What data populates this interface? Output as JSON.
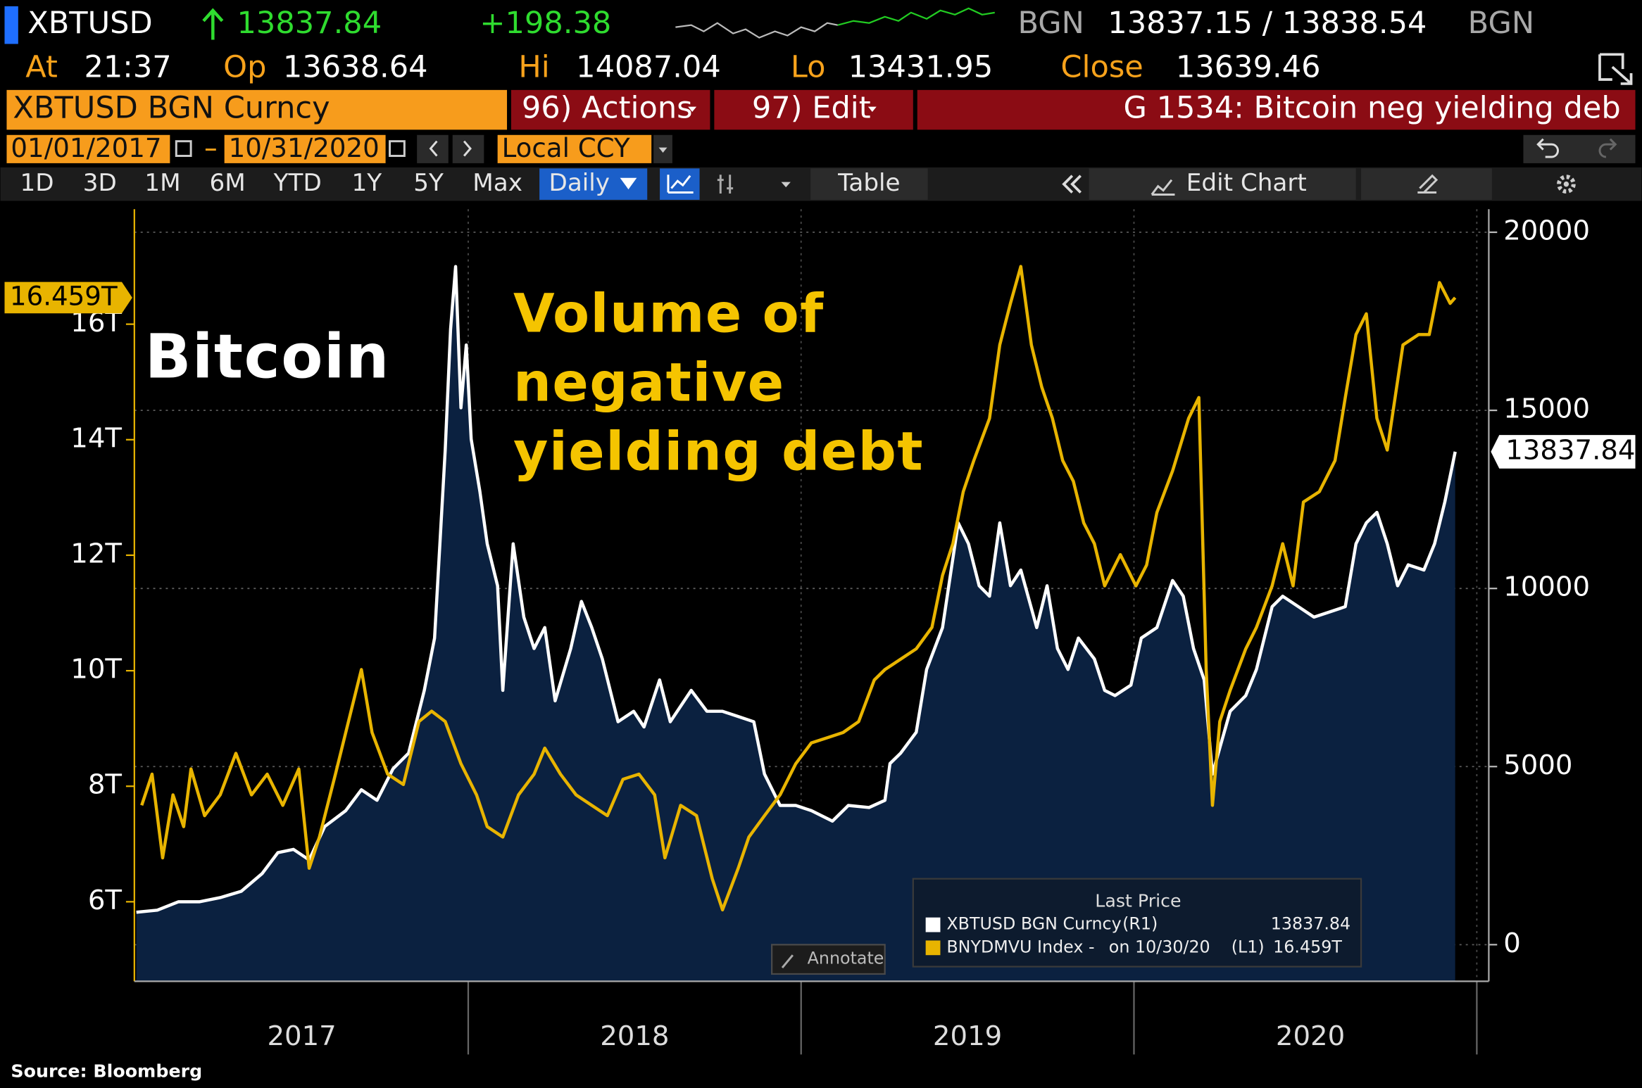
{
  "header": {
    "ticker": "XBTUSD",
    "last": "13837.84",
    "change": "+198.38",
    "source_code": "BGN",
    "bid_ask": "13837.15 / 13838.54",
    "time_label": "At",
    "time": "21:37",
    "open_label": "Op",
    "open": "13638.64",
    "high_label": "Hi",
    "high": "14087.04",
    "low_label": "Lo",
    "low": "13431.95",
    "close_label": "Close",
    "close": "13639.46",
    "security": "XBTUSD BGN Curncy",
    "actions": "96) Actions",
    "edit": "97) Edit",
    "chart_name": "G 1534: Bitcoin neg yielding deb",
    "start_date": "01/01/2017",
    "end_date": "10/31/2020",
    "currency": "Local CCY",
    "periods": [
      "1D",
      "3D",
      "1M",
      "6M",
      "YTD",
      "1Y",
      "5Y",
      "Max"
    ],
    "frequency": "Daily",
    "table": "Table",
    "edit_chart": "Edit Chart"
  },
  "chart_data": {
    "type": "line",
    "annotations": [
      {
        "lines": [
          "Bitcoin"
        ],
        "color": "#ffffff"
      },
      {
        "lines": [
          "Volume of",
          "negative",
          "yielding debt"
        ],
        "color": "#f5c400"
      }
    ],
    "xlim": [
      2016.997,
      2021.066
    ],
    "xticks": [
      {
        "value": 2017.5,
        "label": "2017"
      },
      {
        "value": 2018.5,
        "label": "2018"
      },
      {
        "value": 2019.5,
        "label": "2019"
      },
      {
        "value": 2020.53,
        "label": "2020"
      }
    ],
    "ylim": [
      4.623,
      17.99
    ],
    "yticks": [
      {
        "value": 6,
        "label": "6T"
      },
      {
        "value": 8,
        "label": "8T"
      },
      {
        "value": 10,
        "label": "10T"
      },
      {
        "value": 12,
        "label": "12T"
      },
      {
        "value": 14,
        "label": "14T"
      },
      {
        "value": 16,
        "label": "16T"
      }
    ],
    "y2lim": [
      -1028,
      20646
    ],
    "y2ticks": [
      0,
      5000,
      10000,
      15000,
      20000
    ],
    "grid": true,
    "area_color": "#0b2140",
    "legend": {
      "title": "Last Price"
    },
    "annotate_button": "Annotate",
    "source": "Source: Bloomberg",
    "series": [
      {
        "name": "XBTUSD BGN Curncy",
        "axis_tag": "(R1)",
        "color": "#ffffff",
        "axis": "y2",
        "area": true,
        "last_value": 13837.84,
        "x": [
          2017.003,
          2017.066,
          2017.129,
          2017.192,
          2017.255,
          2017.318,
          2017.381,
          2017.428,
          2017.475,
          2017.522,
          2017.569,
          2017.632,
          2017.679,
          2017.726,
          2017.774,
          2017.821,
          2017.868,
          2017.899,
          2017.931,
          2017.947,
          2017.962,
          2017.978,
          2017.994,
          2018.009,
          2018.035,
          2018.057,
          2018.088,
          2018.104,
          2018.135,
          2018.167,
          2018.198,
          2018.23,
          2018.261,
          2018.308,
          2018.34,
          2018.371,
          2018.403,
          2018.45,
          2018.497,
          2018.528,
          2018.575,
          2018.607,
          2018.67,
          2018.717,
          2018.764,
          2018.811,
          2018.858,
          2018.89,
          2018.937,
          2018.984,
          2019.031,
          2019.094,
          2019.142,
          2019.204,
          2019.252,
          2019.267,
          2019.299,
          2019.346,
          2019.377,
          2019.425,
          2019.472,
          2019.503,
          2019.535,
          2019.566,
          2019.597,
          2019.629,
          2019.66,
          2019.708,
          2019.739,
          2019.77,
          2019.802,
          2019.833,
          2019.881,
          2019.912,
          2019.943,
          2019.991,
          2020.022,
          2020.069,
          2020.116,
          2020.148,
          2020.179,
          2020.211,
          2020.236,
          2020.258,
          2020.289,
          2020.336,
          2020.368,
          2020.415,
          2020.447,
          2020.494,
          2020.541,
          2020.588,
          2020.635,
          2020.667,
          2020.698,
          2020.73,
          2020.761,
          2020.792,
          2020.824,
          2020.871,
          2020.903,
          2020.934,
          2020.965
        ],
        "values": [
          911,
          970,
          1205,
          1205,
          1322,
          1498,
          1998,
          2585,
          2674,
          2380,
          3320,
          3761,
          4348,
          4054,
          4936,
          5377,
          7139,
          8608,
          13897,
          17275,
          19038,
          15072,
          16835,
          14191,
          12722,
          11253,
          10077,
          7139,
          11253,
          9196,
          8314,
          8902,
          6845,
          8314,
          9637,
          8902,
          8020,
          6258,
          6552,
          6111,
          7433,
          6258,
          7139,
          6552,
          6552,
          6405,
          6258,
          4789,
          3908,
          3908,
          3761,
          3467,
          3908,
          3849,
          4054,
          5083,
          5377,
          5964,
          7727,
          8902,
          11840,
          11253,
          10077,
          9784,
          11840,
          10077,
          10518,
          8902,
          10077,
          8314,
          7727,
          8608,
          8020,
          7139,
          6992,
          7286,
          8608,
          8902,
          10224,
          9784,
          8314,
          7433,
          4789,
          5523,
          6552,
          6992,
          7727,
          9490,
          9784,
          9490,
          9196,
          9343,
          9490,
          11253,
          11840,
          12134,
          11253,
          10077,
          10665,
          10518,
          11253,
          12428,
          13837.84
        ]
      },
      {
        "name": "BNYDMVU Index -",
        "date": "on 10/30/20",
        "axis_tag": "(L1)",
        "color": "#e8b400",
        "area": false,
        "last_value": {
          "value": 16.459,
          "label": "16.459T"
        },
        "x": [
          2017.019,
          2017.05,
          2017.082,
          2017.113,
          2017.145,
          2017.167,
          2017.208,
          2017.255,
          2017.302,
          2017.349,
          2017.396,
          2017.443,
          2017.491,
          2017.522,
          2017.553,
          2017.601,
          2017.648,
          2017.679,
          2017.711,
          2017.758,
          2017.805,
          2017.852,
          2017.89,
          2017.931,
          2017.978,
          2018.025,
          2018.057,
          2018.104,
          2018.151,
          2018.198,
          2018.23,
          2018.277,
          2018.324,
          2018.371,
          2018.418,
          2018.465,
          2018.513,
          2018.56,
          2018.591,
          2018.638,
          2018.686,
          2018.733,
          2018.764,
          2018.811,
          2018.843,
          2018.89,
          2018.937,
          2018.984,
          2019.031,
          2019.079,
          2019.126,
          2019.173,
          2019.22,
          2019.252,
          2019.299,
          2019.346,
          2019.393,
          2019.425,
          2019.456,
          2019.487,
          2019.519,
          2019.566,
          2019.597,
          2019.629,
          2019.66,
          2019.692,
          2019.723,
          2019.755,
          2019.786,
          2019.818,
          2019.849,
          2019.881,
          2019.912,
          2019.959,
          2020.006,
          2020.038,
          2020.069,
          2020.116,
          2020.164,
          2020.195,
          2020.217,
          2020.236,
          2020.258,
          2020.289,
          2020.336,
          2020.368,
          2020.415,
          2020.447,
          2020.478,
          2020.509,
          2020.557,
          2020.604,
          2020.635,
          2020.667,
          2020.698,
          2020.73,
          2020.761,
          2020.808,
          2020.855,
          2020.887,
          2020.918,
          2020.95,
          2020.965
        ],
        "values": [
          7.67,
          8.21,
          6.76,
          7.85,
          7.3,
          8.3,
          7.49,
          7.85,
          8.57,
          7.85,
          8.21,
          7.67,
          8.3,
          6.58,
          7.12,
          8.21,
          9.3,
          10.02,
          8.93,
          8.21,
          8.03,
          9.12,
          9.3,
          9.12,
          8.39,
          7.85,
          7.3,
          7.12,
          7.85,
          8.21,
          8.66,
          8.21,
          7.85,
          7.67,
          7.49,
          8.12,
          8.21,
          7.85,
          6.76,
          7.67,
          7.49,
          6.4,
          5.86,
          6.58,
          7.12,
          7.49,
          7.85,
          8.39,
          8.75,
          8.84,
          8.93,
          9.12,
          9.84,
          10.02,
          10.2,
          10.38,
          10.75,
          11.65,
          12.2,
          13.1,
          13.64,
          14.37,
          15.64,
          16.36,
          17.0,
          15.64,
          14.91,
          14.37,
          13.64,
          13.28,
          12.56,
          12.2,
          11.47,
          12.01,
          11.47,
          11.83,
          12.74,
          13.46,
          14.37,
          14.73,
          10.02,
          7.67,
          9.12,
          9.66,
          10.38,
          10.75,
          11.47,
          12.2,
          11.47,
          12.92,
          13.1,
          13.64,
          14.73,
          15.82,
          16.18,
          14.37,
          13.82,
          15.64,
          15.82,
          15.82,
          16.72,
          16.36,
          16.459
        ]
      }
    ]
  }
}
